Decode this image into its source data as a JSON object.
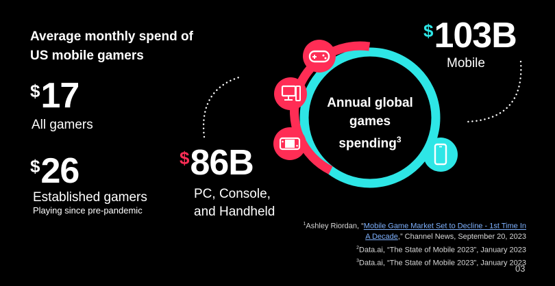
{
  "heading": "Average monthly spend of US mobile gamers",
  "stat_all": {
    "dollar": "$",
    "value": "17",
    "label": "All gamers"
  },
  "stat_established": {
    "dollar": "$",
    "value": "26",
    "label": "Established gamers",
    "sublabel": "Playing since pre-pandemic"
  },
  "ring": {
    "title_line1": "Annual global",
    "title_line2": "games",
    "title_line3": "spending",
    "title_sup": "3",
    "colors": {
      "pc_console_handheld": "#ff2d55",
      "mobile": "#2ee6e6"
    },
    "icons": [
      "gamepad-icon",
      "desktop-pc-icon",
      "handheld-console-icon",
      "smartphone-icon"
    ]
  },
  "stat_pc": {
    "dollar": "$",
    "value": "86B",
    "label_line1": "PC, Console,",
    "label_line2": "and Handheld"
  },
  "stat_mobile": {
    "dollar": "$",
    "value": "103B",
    "label": "Mobile"
  },
  "footnotes": {
    "fn1_sup": "1",
    "fn1_pre": "Ashley Riordan, “",
    "fn1_link": "Mobile Game Market Set to Decline - 1st Time In A Decade",
    "fn1_post": ",” Channel News, September 20, 2023",
    "fn2_sup": "2",
    "fn2_text": "Data.ai, “The State of Mobile 2023”, January 2023",
    "fn3_sup": "3",
    "fn3_text": "Data.ai, “The State of Mobile 2023”, January 2023"
  },
  "page_number": "03"
}
